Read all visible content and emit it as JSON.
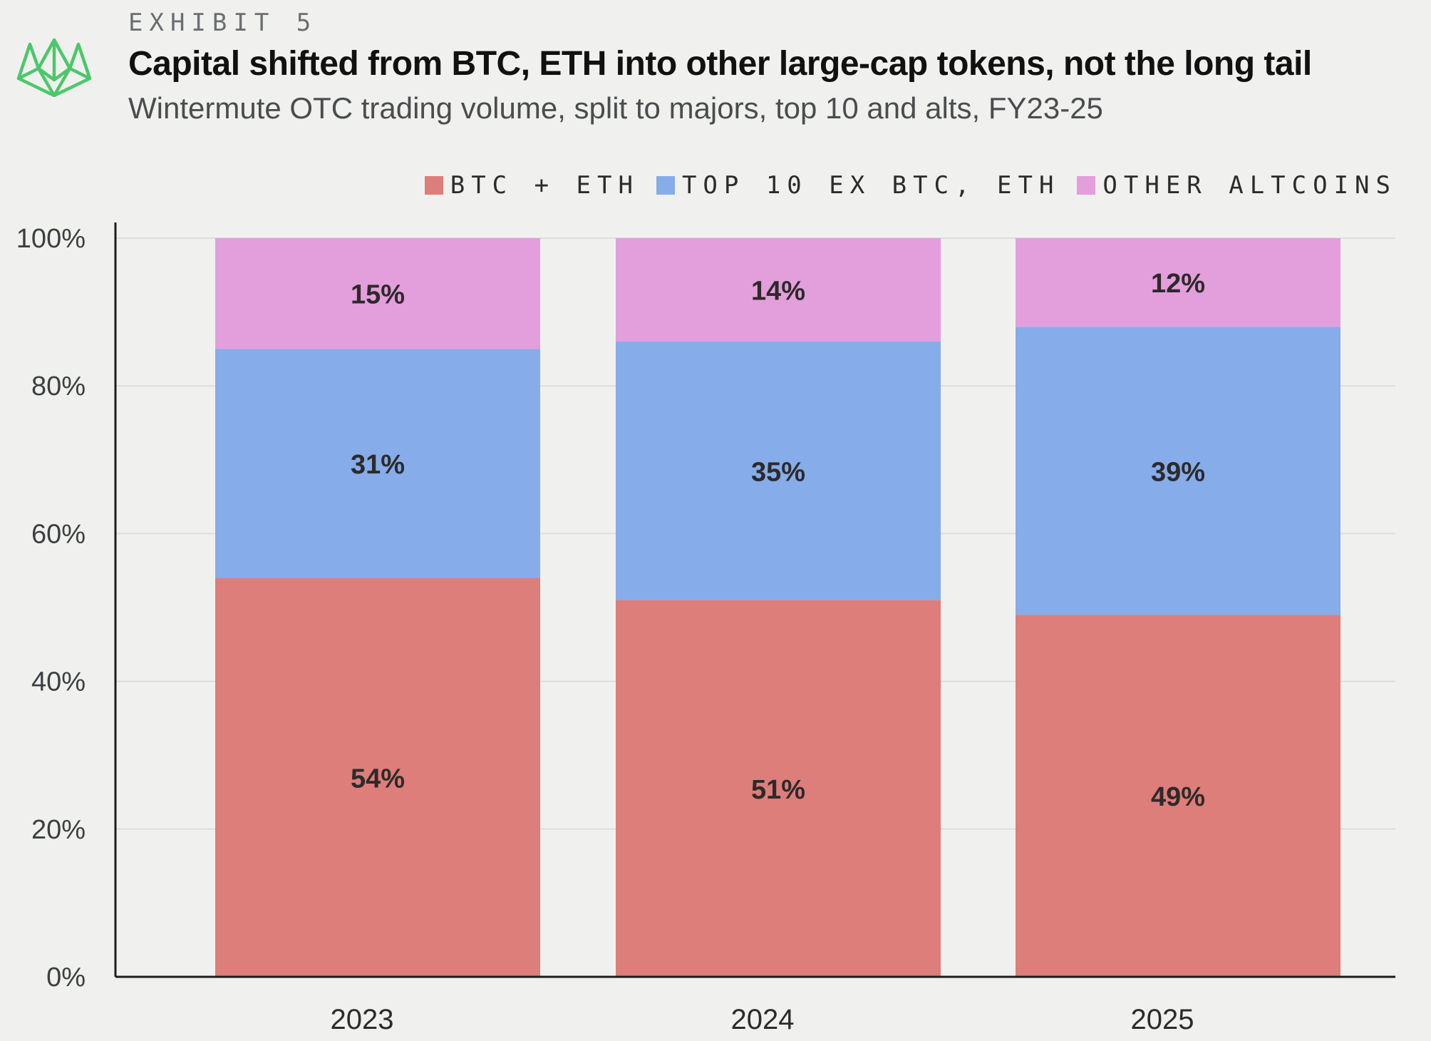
{
  "exhibit_label": "EXHIBIT 5",
  "logo_icon": "wintermute-logo-icon",
  "colors": {
    "btc_eth": "#dd7e7a",
    "top10": "#86ace9",
    "alts": "#e39edc",
    "logo": "#4cc76a",
    "grid": "#dcdedd",
    "axis": "#1c1c1c"
  },
  "chart_data": {
    "type": "bar",
    "stacked": true,
    "title": "Capital shifted from BTC, ETH into other large-cap tokens, not the long tail",
    "subtitle": "Wintermute OTC trading volume, split to majors, top 10 and alts, FY23-25",
    "xlabel": "",
    "ylabel": "",
    "categories": [
      "2023",
      "2024",
      "2025"
    ],
    "ylim": [
      0,
      100
    ],
    "yticks": [
      0,
      20,
      40,
      60,
      80,
      100
    ],
    "ytick_labels": [
      "0%",
      "20%",
      "40%",
      "60%",
      "80%",
      "100%"
    ],
    "grid": true,
    "legend_position": "top-right",
    "series": [
      {
        "name": "BTC + ETH",
        "values": [
          54,
          51,
          49
        ],
        "labels": [
          "54%",
          "51%",
          "49%"
        ]
      },
      {
        "name": "TOP 10 EX BTC, ETH",
        "values": [
          31,
          35,
          39
        ],
        "labels": [
          "31%",
          "35%",
          "39%"
        ]
      },
      {
        "name": "OTHER ALTCOINS",
        "values": [
          15,
          14,
          12
        ],
        "labels": [
          "15%",
          "14%",
          "12%"
        ]
      }
    ]
  }
}
